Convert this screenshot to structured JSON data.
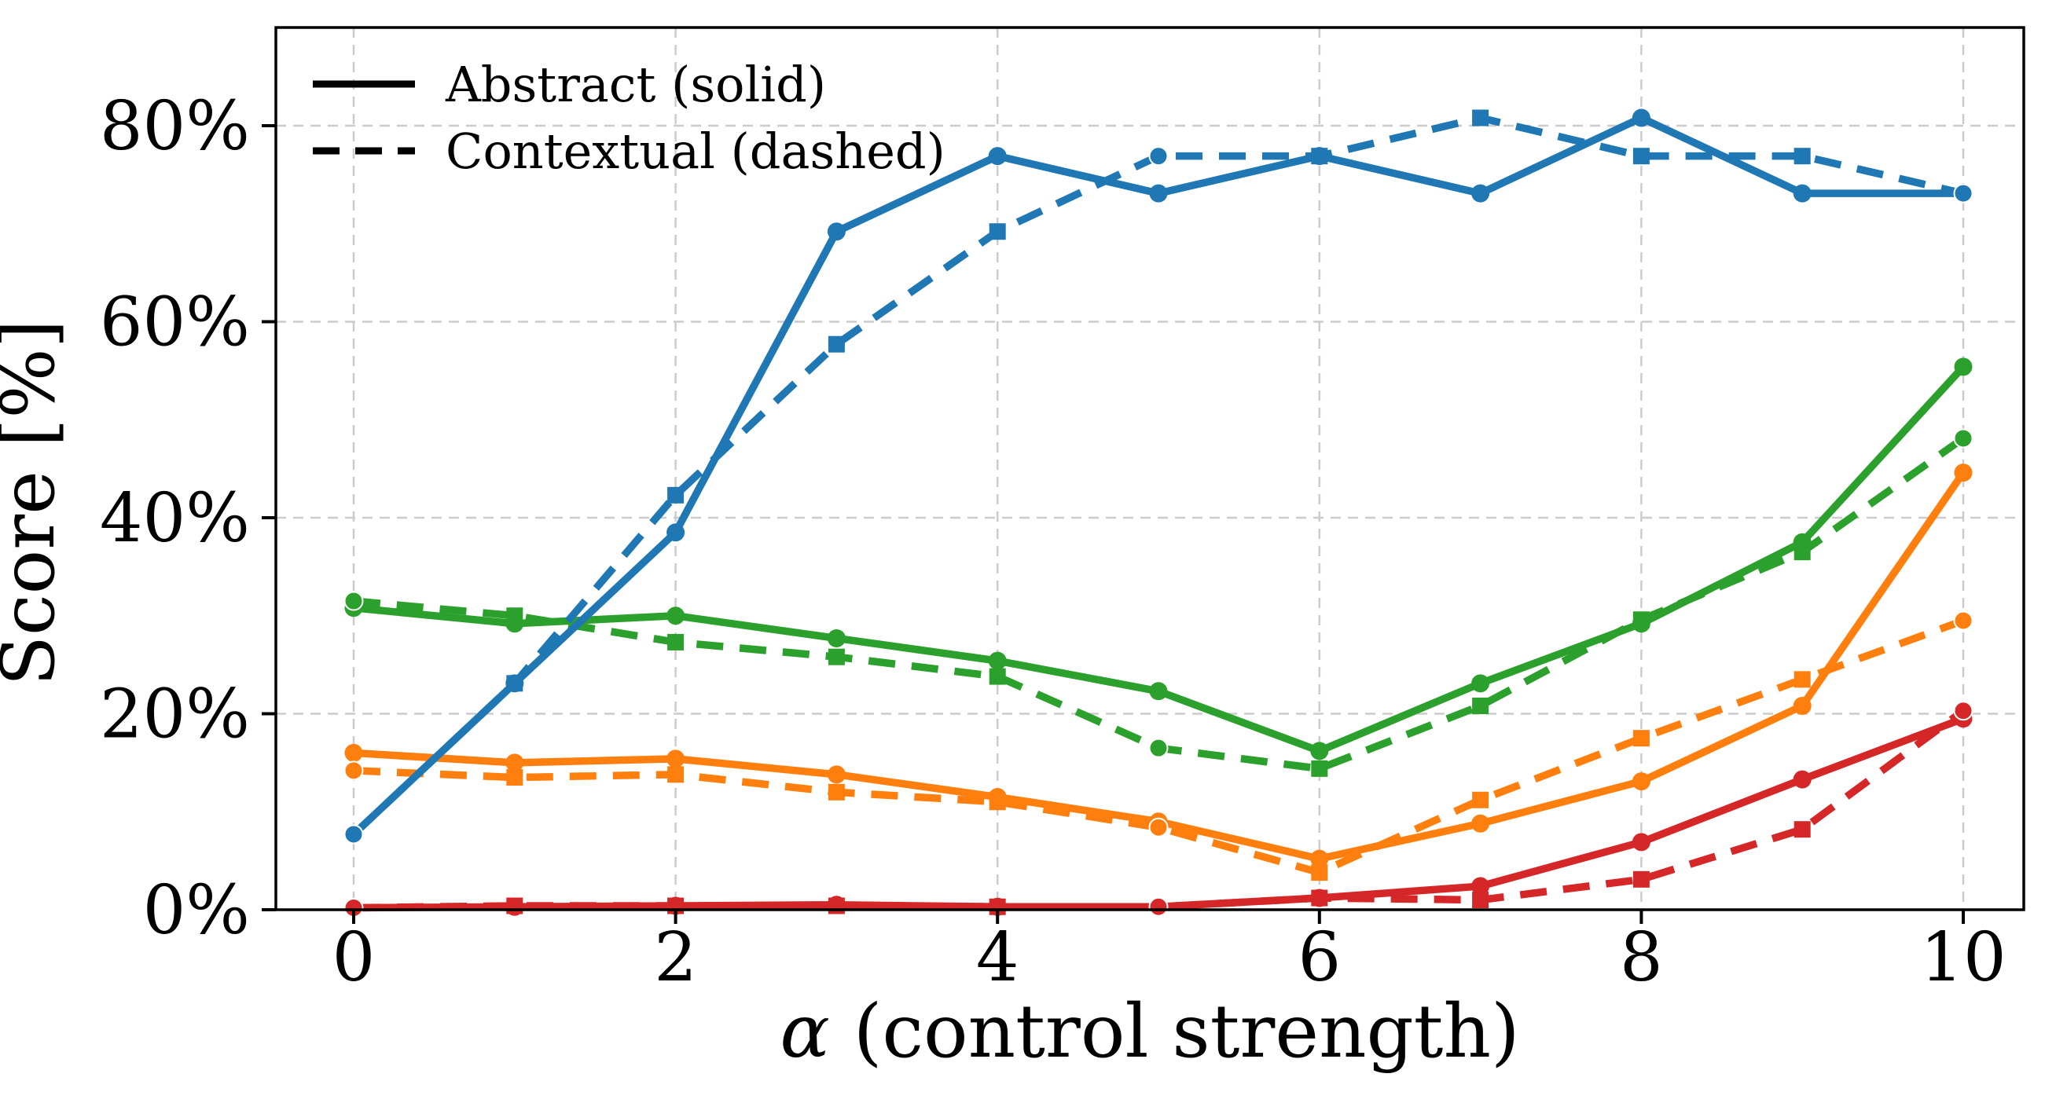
{
  "chart_data": {
    "type": "line",
    "title": "",
    "xlabel": "α (control strength)",
    "xlabel_symbol": "α",
    "xlabel_rest": " (control strength)",
    "ylabel": "Score [%]",
    "x": [
      0,
      1,
      2,
      3,
      4,
      5,
      6,
      7,
      8,
      9,
      10
    ],
    "x_tick_values": [
      0,
      2,
      4,
      6,
      8,
      10
    ],
    "x_tick_labels": [
      "0",
      "2",
      "4",
      "6",
      "8",
      "10"
    ],
    "y_tick_values": [
      0,
      20,
      40,
      60,
      80
    ],
    "y_tick_labels": [
      "0%",
      "20%",
      "40%",
      "60%",
      "80%"
    ],
    "xlim": [
      -0.48,
      10.38
    ],
    "ylim": [
      0,
      90
    ],
    "grid": true,
    "grid_color": "#cccccc",
    "legend_position": "upper left",
    "legend_entries": [
      {
        "label": "Abstract (solid)",
        "style": "solid"
      },
      {
        "label": "Contextual (dashed)",
        "style": "dashed"
      }
    ],
    "series": [
      {
        "id": "red-abstract",
        "group": "Abstract (solid)",
        "color": "#d62728",
        "line": "solid",
        "marker": "circle",
        "values": [
          0.2,
          0.3,
          0.4,
          0.5,
          0.3,
          0.3,
          1.2,
          2.4,
          6.9,
          13.3,
          19.5
        ]
      },
      {
        "id": "red-contextual",
        "group": "Contextual (dashed)",
        "color": "#d62728",
        "line": "dashed",
        "marker": "square",
        "marker_circle_at": [
          0,
          5,
          10
        ],
        "values": [
          0.2,
          0.4,
          0.4,
          0.4,
          0.3,
          0.3,
          1.2,
          1.0,
          3.1,
          8.2,
          20.3
        ]
      },
      {
        "id": "orange-abstract",
        "group": "Abstract (solid)",
        "color": "#ff7f0e",
        "line": "solid",
        "marker": "circle",
        "values": [
          16.0,
          15.0,
          15.4,
          13.8,
          11.5,
          9.0,
          5.2,
          8.8,
          13.1,
          20.8,
          44.6
        ]
      },
      {
        "id": "orange-contextual",
        "group": "Contextual (dashed)",
        "color": "#ff7f0e",
        "line": "dashed",
        "marker": "square",
        "marker_circle_at": [
          0,
          5,
          10
        ],
        "values": [
          14.2,
          13.5,
          13.8,
          12.0,
          11.0,
          8.4,
          3.8,
          11.2,
          17.5,
          23.5,
          29.5
        ]
      },
      {
        "id": "green-abstract",
        "group": "Abstract (solid)",
        "color": "#2ca02c",
        "line": "solid",
        "marker": "circle",
        "values": [
          30.8,
          29.2,
          30.0,
          27.7,
          25.4,
          22.3,
          16.2,
          23.1,
          29.2,
          37.5,
          55.4
        ]
      },
      {
        "id": "green-contextual",
        "group": "Contextual (dashed)",
        "color": "#2ca02c",
        "line": "dashed",
        "marker": "square",
        "marker_circle_at": [
          0,
          5,
          10
        ],
        "values": [
          31.5,
          30.0,
          27.3,
          25.8,
          23.8,
          16.5,
          14.4,
          20.8,
          29.6,
          36.5,
          48.1
        ]
      },
      {
        "id": "blue-abstract",
        "group": "Abstract (solid)",
        "color": "#1f77b4",
        "line": "solid",
        "marker": "circle",
        "values": [
          7.7,
          23.1,
          38.5,
          69.2,
          76.9,
          73.1,
          76.9,
          73.1,
          80.8,
          73.1,
          73.1
        ]
      },
      {
        "id": "blue-contextual",
        "group": "Contextual (dashed)",
        "color": "#1f77b4",
        "line": "dashed",
        "marker": "square",
        "marker_circle_at": [
          0,
          5,
          10
        ],
        "values": [
          7.7,
          23.1,
          42.3,
          57.7,
          69.2,
          76.9,
          76.9,
          80.8,
          76.9,
          76.9,
          73.1
        ]
      }
    ]
  }
}
